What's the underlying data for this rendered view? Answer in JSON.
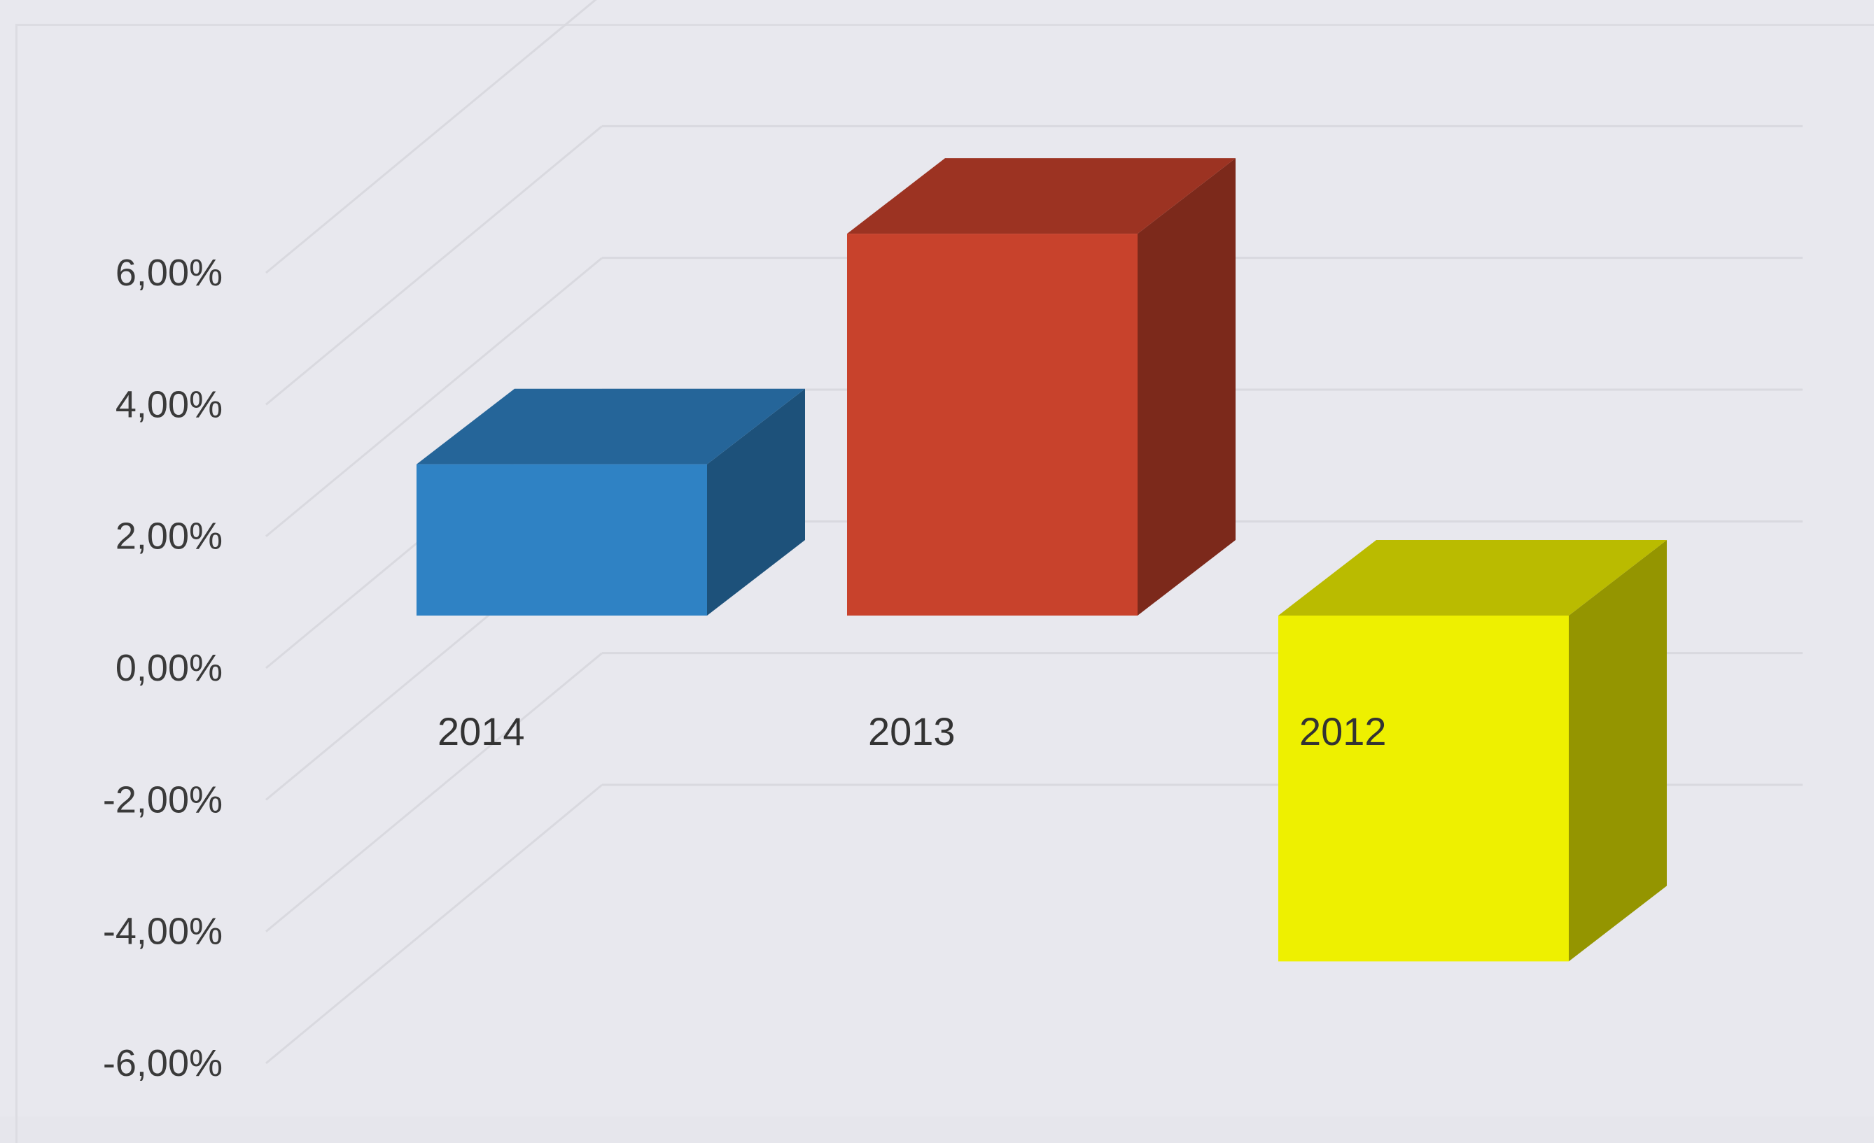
{
  "chart_data": {
    "type": "bar",
    "style": "3d-column",
    "categories": [
      "2014",
      "2013",
      "2012"
    ],
    "values": [
      2.1,
      5.3,
      -4.8
    ],
    "colors": {
      "2014": "#2f82c4",
      "2013": "#c8422c",
      "2012": "#eef000"
    },
    "y_ticks": [
      "6,00%",
      "4,00%",
      "2,00%",
      "0,00%",
      "-2,00%",
      "-4,00%",
      "-6,00%"
    ],
    "ylim": [
      -6,
      6
    ],
    "grid": true,
    "legend": "none"
  }
}
